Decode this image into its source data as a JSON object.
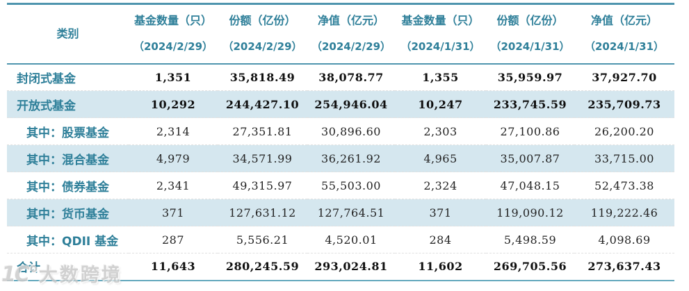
{
  "table": {
    "category_header": "类别",
    "columns": [
      {
        "label": "基金数量（只）",
        "date": "（2024/2/29）"
      },
      {
        "label": "份额（亿份）",
        "date": "（2024/2/29）"
      },
      {
        "label": "净值（亿元）",
        "date": "（2024/2/29）"
      },
      {
        "label": "基金数量（只）",
        "date": "（2024/1/31）"
      },
      {
        "label": "份额（亿份）",
        "date": "（2024/1/31）"
      },
      {
        "label": "净值（亿元）",
        "date": "（2024/1/31）"
      }
    ],
    "rows": [
      {
        "label": "封闭式基金",
        "values": [
          "1,351",
          "35,818.49",
          "38,078.77",
          "1,355",
          "35,959.97",
          "37,927.70"
        ]
      },
      {
        "label": "开放式基金",
        "values": [
          "10,292",
          "244,427.10",
          "254,946.04",
          "10,247",
          "233,745.59",
          "235,709.73"
        ]
      },
      {
        "label": "其中：股票基金",
        "values": [
          "2,314",
          "27,351.81",
          "30,896.60",
          "2,303",
          "27,100.86",
          "26,200.20"
        ]
      },
      {
        "label": "其中：混合基金",
        "values": [
          "4,979",
          "34,571.99",
          "36,261.92",
          "4,965",
          "35,007.87",
          "33,715.00"
        ]
      },
      {
        "label": "其中：债券基金",
        "values": [
          "2,341",
          "49,315.97",
          "55,503.00",
          "2,324",
          "47,048.15",
          "52,473.38"
        ]
      },
      {
        "label": "其中：货币基金",
        "values": [
          "371",
          "127,631.12",
          "127,764.51",
          "371",
          "119,090.12",
          "119,222.46"
        ]
      },
      {
        "label": "其中：QDII 基金",
        "values": [
          "287",
          "5,556.21",
          "4,520.01",
          "284",
          "5,498.59",
          "4,098.69"
        ]
      },
      {
        "label": "合计",
        "values": [
          "11,643",
          "280,245.59",
          "293,024.81",
          "11,602",
          "269,705.56",
          "273,637.43"
        ]
      }
    ]
  },
  "watermark": {
    "logo": "1C°",
    "text": "大数跨境"
  },
  "colors": {
    "accent_text": "#2e7f99",
    "row_highlight": "#d5e7ef",
    "border": "#4e95ae"
  }
}
